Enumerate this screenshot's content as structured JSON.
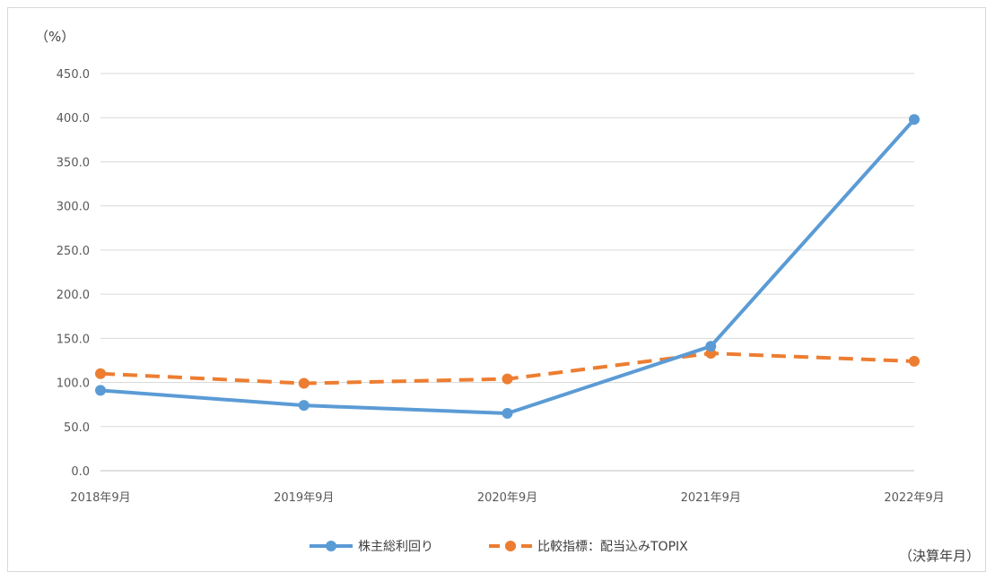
{
  "chart_data": {
    "type": "line",
    "y_unit_label": "（%）",
    "x_unit_label": "（決算年月）",
    "categories": [
      "2018年9月",
      "2019年9月",
      "2020年9月",
      "2021年9月",
      "2022年9月"
    ],
    "ylim": [
      0,
      450
    ],
    "yticks": [
      "0.0",
      "50.0",
      "100.0",
      "150.0",
      "200.0",
      "250.0",
      "300.0",
      "350.0",
      "400.0",
      "450.0"
    ],
    "ytick_values": [
      0,
      50,
      100,
      150,
      200,
      250,
      300,
      350,
      400,
      450
    ],
    "grid": true,
    "legend_position": "bottom",
    "series": [
      {
        "name": "株主総利回り",
        "values": [
          91,
          74,
          65,
          141,
          398
        ],
        "color": "#5b9bd5",
        "style": "solid"
      },
      {
        "name": "比較指標：配当込みTOPIX",
        "values": [
          110,
          99,
          104,
          133,
          124
        ],
        "color": "#ed7d31",
        "style": "dashed"
      }
    ]
  }
}
